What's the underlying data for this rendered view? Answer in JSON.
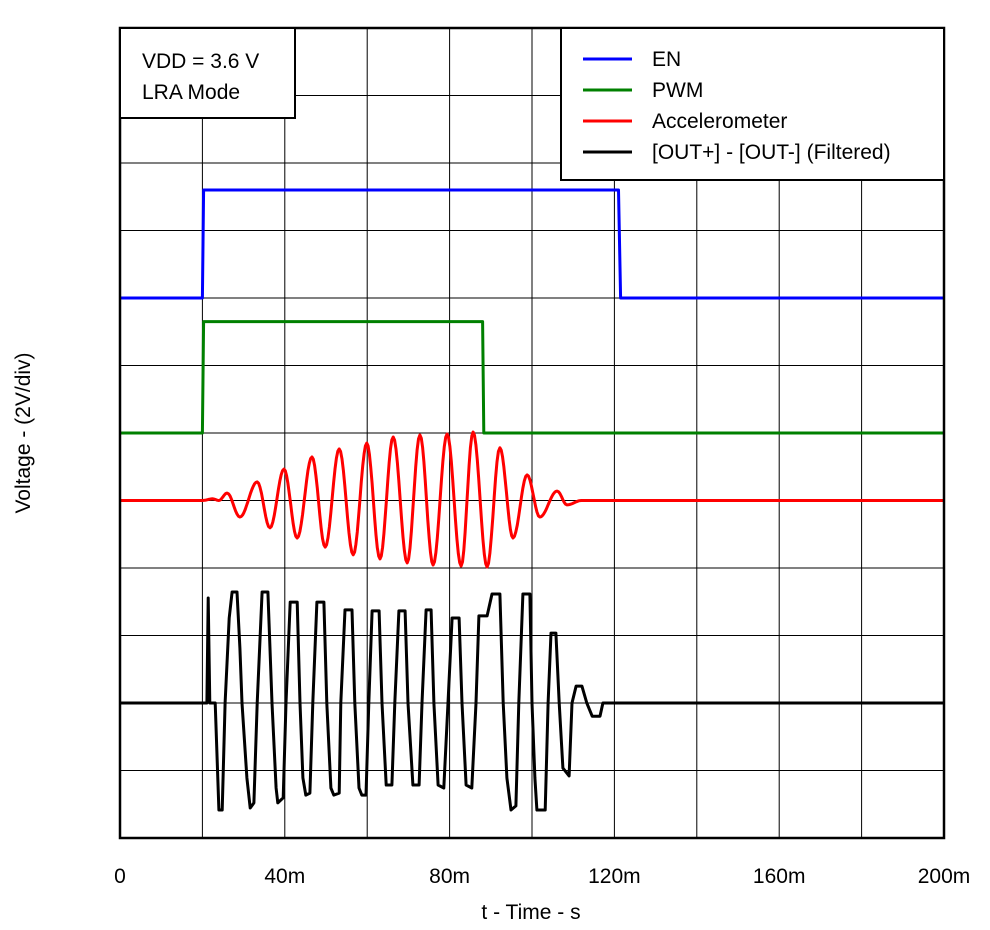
{
  "chart_data": {
    "type": "line",
    "xlabel": "t - Time - s",
    "ylabel": "Voltage - (2V/div)",
    "xlim": [
      0,
      200
    ],
    "ylim": [
      0,
      24
    ],
    "x_unit_scale": "m",
    "x_ticks": [
      0,
      40,
      80,
      120,
      160,
      200
    ],
    "x_tick_labels": [
      "0",
      "40m",
      "80m",
      "120m",
      "160m",
      "200m"
    ],
    "x_grid_step": 20,
    "y_grid_step": 2,
    "grid": true,
    "legend_placement": "top-right",
    "annotation": [
      "VDD = 3.6 V",
      "LRA Mode"
    ],
    "series": [
      {
        "name": "EN",
        "color": "#0000ff",
        "smooth": false,
        "points": [
          [
            0,
            16
          ],
          [
            20,
            16
          ],
          [
            20.3,
            19.2
          ],
          [
            121,
            19.2
          ],
          [
            121.5,
            16
          ],
          [
            200,
            16
          ]
        ]
      },
      {
        "name": "PWM",
        "color": "#008000",
        "smooth": false,
        "points": [
          [
            0,
            12
          ],
          [
            20,
            12
          ],
          [
            20.3,
            15.3
          ],
          [
            88,
            15.3
          ],
          [
            88.3,
            12
          ],
          [
            200,
            12
          ]
        ]
      },
      {
        "name": "Accelerometer",
        "color": "#ff0000",
        "smooth": true,
        "points": [
          [
            0,
            10
          ],
          [
            20,
            10
          ],
          [
            22.5,
            10.05
          ],
          [
            24,
            10
          ],
          [
            26.0,
            10.22
          ],
          [
            29.1,
            9.51
          ],
          [
            33.3,
            10.55
          ],
          [
            36.4,
            9.19
          ],
          [
            39.8,
            10.93
          ],
          [
            43.0,
            8.89
          ],
          [
            46.6,
            11.29
          ],
          [
            49.8,
            8.62
          ],
          [
            53.2,
            11.53
          ],
          [
            56.6,
            8.39
          ],
          [
            59.9,
            11.7
          ],
          [
            63.1,
            8.27
          ],
          [
            66.3,
            11.88
          ],
          [
            69.7,
            8.15
          ],
          [
            72.8,
            11.94
          ],
          [
            76.0,
            8.09
          ],
          [
            79.4,
            11.97
          ],
          [
            82.8,
            8.06
          ],
          [
            85.7,
            12.03
          ],
          [
            89.1,
            8.03
          ],
          [
            92.2,
            11.56
          ],
          [
            95.4,
            8.89
          ],
          [
            98.8,
            10.76
          ],
          [
            101.9,
            9.51
          ],
          [
            106.1,
            10.28
          ],
          [
            108.5,
            9.87
          ],
          [
            112,
            10
          ],
          [
            200,
            10
          ]
        ]
      },
      {
        "name": "[OUT+] - [OUT-] (Filtered)",
        "color": "#000000",
        "smooth": false,
        "points": [
          [
            0,
            4
          ],
          [
            21.1,
            4
          ],
          [
            21.4,
            7.11
          ],
          [
            21.8,
            4
          ],
          [
            23.1,
            4
          ],
          [
            24.0,
            0.83
          ],
          [
            24.8,
            0.83
          ],
          [
            25.5,
            4
          ],
          [
            26.5,
            6.52
          ],
          [
            27.2,
            7.29
          ],
          [
            28.4,
            7.29
          ],
          [
            29.1,
            5.63
          ],
          [
            29.6,
            4
          ],
          [
            30.8,
            1.78
          ],
          [
            31.6,
            0.89
          ],
          [
            32.5,
            1.04
          ],
          [
            33.3,
            4
          ],
          [
            34.5,
            7.29
          ],
          [
            35.9,
            7.29
          ],
          [
            36.9,
            4
          ],
          [
            37.9,
            1.48
          ],
          [
            38.3,
            1.04
          ],
          [
            39.6,
            1.19
          ],
          [
            40.3,
            4
          ],
          [
            41.3,
            6.99
          ],
          [
            43.0,
            6.99
          ],
          [
            43.7,
            4
          ],
          [
            44.4,
            1.78
          ],
          [
            45.1,
            1.27
          ],
          [
            46.1,
            1.33
          ],
          [
            46.8,
            4
          ],
          [
            47.8,
            6.99
          ],
          [
            49.5,
            6.99
          ],
          [
            50.2,
            4
          ],
          [
            51.2,
            1.48
          ],
          [
            51.9,
            1.27
          ],
          [
            53.2,
            1.33
          ],
          [
            53.6,
            4
          ],
          [
            54.6,
            6.76
          ],
          [
            56.3,
            6.76
          ],
          [
            57.0,
            4
          ],
          [
            58.0,
            1.48
          ],
          [
            58.7,
            1.27
          ],
          [
            59.7,
            1.27
          ],
          [
            60.4,
            4
          ],
          [
            61.2,
            6.73
          ],
          [
            62.9,
            6.73
          ],
          [
            63.6,
            4
          ],
          [
            64.6,
            1.57
          ],
          [
            66.0,
            1.57
          ],
          [
            66.7,
            4
          ],
          [
            67.7,
            6.73
          ],
          [
            69.2,
            6.73
          ],
          [
            69.9,
            4
          ],
          [
            71.1,
            1.57
          ],
          [
            72.6,
            1.57
          ],
          [
            73.3,
            4
          ],
          [
            74.3,
            6.76
          ],
          [
            75.5,
            6.76
          ],
          [
            76.2,
            4
          ],
          [
            77.2,
            1.57
          ],
          [
            78.6,
            1.48
          ],
          [
            79.6,
            4
          ],
          [
            80.6,
            6.52
          ],
          [
            82.3,
            6.52
          ],
          [
            83.0,
            4
          ],
          [
            84.0,
            1.57
          ],
          [
            85.4,
            1.48
          ],
          [
            86.4,
            4
          ],
          [
            87.1,
            6.58
          ],
          [
            89.1,
            6.58
          ],
          [
            90.3,
            7.23
          ],
          [
            92.2,
            7.23
          ],
          [
            93.0,
            4
          ],
          [
            93.9,
            1.78
          ],
          [
            94.9,
            0.83
          ],
          [
            96.1,
            0.95
          ],
          [
            96.8,
            4
          ],
          [
            97.8,
            7.23
          ],
          [
            99.5,
            7.23
          ],
          [
            100.0,
            4
          ],
          [
            100.7,
            1.78
          ],
          [
            101.2,
            0.83
          ],
          [
            103.2,
            0.83
          ],
          [
            103.9,
            4
          ],
          [
            104.6,
            6.07
          ],
          [
            105.8,
            6.07
          ],
          [
            106.6,
            4
          ],
          [
            107.5,
            2.07
          ],
          [
            109.0,
            1.84
          ],
          [
            109.7,
            4
          ],
          [
            110.7,
            4.5
          ],
          [
            112.1,
            4.5
          ],
          [
            113.3,
            4
          ],
          [
            114.6,
            3.61
          ],
          [
            116.5,
            3.61
          ],
          [
            117.2,
            4
          ],
          [
            200,
            4
          ]
        ]
      }
    ]
  }
}
